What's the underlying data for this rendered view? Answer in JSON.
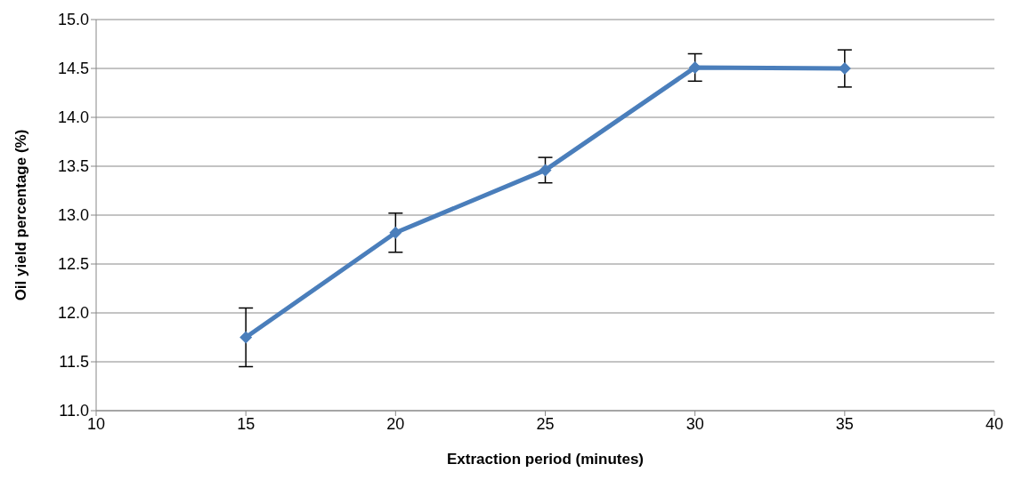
{
  "chart_data": {
    "type": "line",
    "xlabel": "Extraction period (minutes)",
    "ylabel": "Oil yield percentage (%)",
    "x": [
      15,
      20,
      25,
      30,
      35
    ],
    "series": [
      {
        "color": "#4a7ebb",
        "values": [
          11.75,
          12.82,
          13.46,
          14.51,
          14.5
        ],
        "errors": [
          0.3,
          0.2,
          0.13,
          0.14,
          0.19
        ]
      }
    ],
    "xlim": [
      10,
      40
    ],
    "xticks": [
      10,
      15,
      20,
      25,
      30,
      35,
      40
    ],
    "ylim": [
      11.0,
      15.0
    ],
    "yticks": [
      {
        "value": 11,
        "label": "11.0"
      },
      {
        "value": 11.5,
        "label": "11.5"
      },
      {
        "value": 12,
        "label": "12.0"
      },
      {
        "value": 12.5,
        "label": "12.5"
      },
      {
        "value": 13,
        "label": "13.0"
      },
      {
        "value": 13.5,
        "label": "13.5"
      },
      {
        "value": 14,
        "label": "14.0"
      },
      {
        "value": 14.5,
        "label": "14.5"
      },
      {
        "value": 15,
        "label": "15.0"
      }
    ],
    "grid": "y",
    "marker": "diamond",
    "line_style": "solid",
    "legend": false
  }
}
